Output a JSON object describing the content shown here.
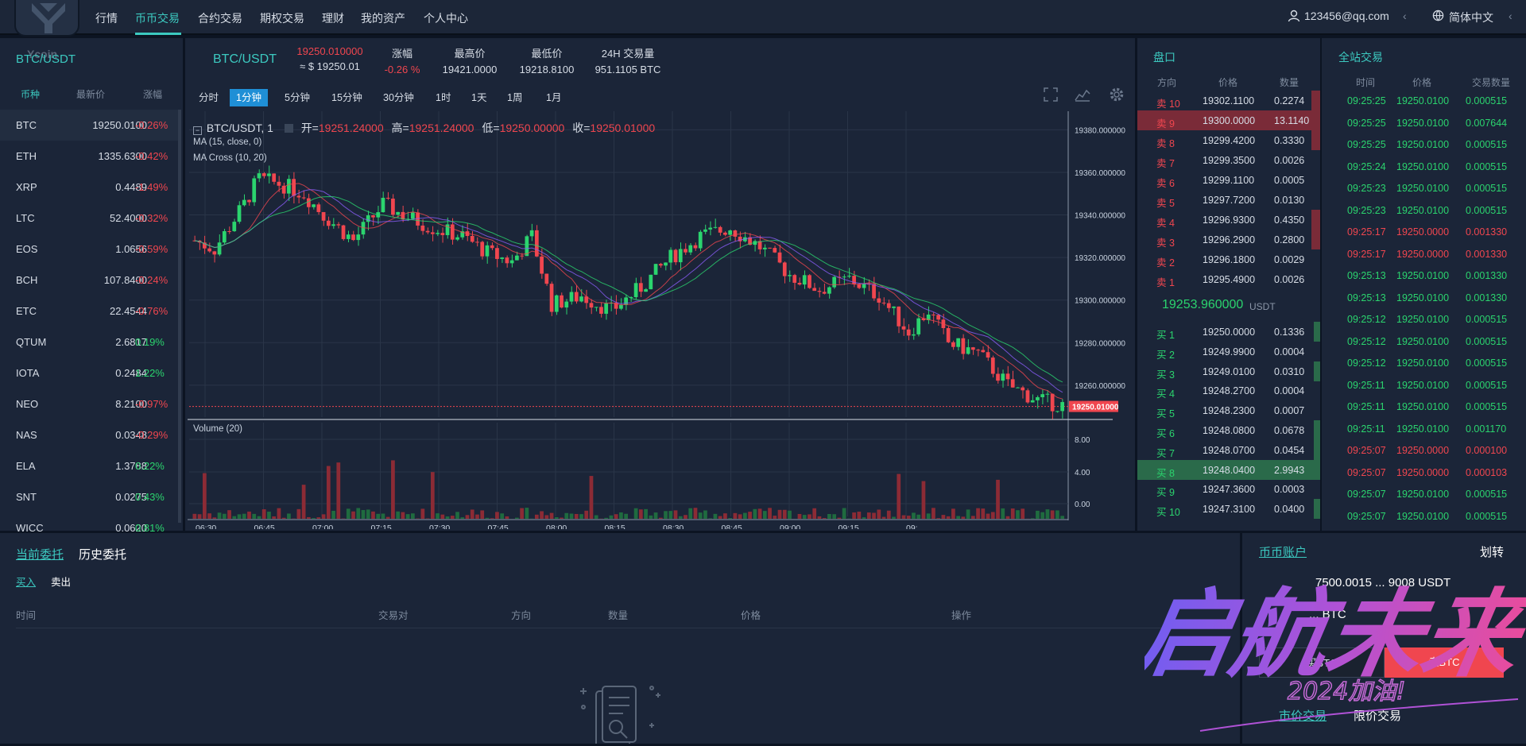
{
  "nav": {
    "items": [
      "行情",
      "币币交易",
      "合约交易",
      "期权交易",
      "理财",
      "我的资产",
      "个人中心"
    ],
    "active": 1,
    "user": "123456@qq.com",
    "lang": "简体中文",
    "logo_text": "Ycoin"
  },
  "market": {
    "pair_title": "BTC/USDT",
    "headers": [
      "币种",
      "最新价",
      "涨幅"
    ],
    "rows": [
      {
        "sym": "BTC",
        "price": "19250.0100",
        "chg": "-0.26%",
        "dir": "dn"
      },
      {
        "sym": "ETH",
        "price": "1335.6300",
        "chg": "-0.42%",
        "dir": "dn"
      },
      {
        "sym": "XRP",
        "price": "0.4489",
        "chg": "-1.49%",
        "dir": "dn"
      },
      {
        "sym": "LTC",
        "price": "52.4000",
        "chg": "-0.32%",
        "dir": "dn"
      },
      {
        "sym": "EOS",
        "price": "1.0656",
        "chg": "-0.59%",
        "dir": "dn"
      },
      {
        "sym": "BCH",
        "price": "107.8400",
        "chg": "-0.24%",
        "dir": "dn"
      },
      {
        "sym": "ETC",
        "price": "22.4544",
        "chg": "-0.76%",
        "dir": "dn"
      },
      {
        "sym": "QTUM",
        "price": "2.6817",
        "chg": "0.19%",
        "dir": "up"
      },
      {
        "sym": "IOTA",
        "price": "0.2484",
        "chg": "1.22%",
        "dir": "up"
      },
      {
        "sym": "NEO",
        "price": "8.2100",
        "chg": "-0.97%",
        "dir": "dn"
      },
      {
        "sym": "NAS",
        "price": "0.0348",
        "chg": "-0.29%",
        "dir": "dn"
      },
      {
        "sym": "ELA",
        "price": "1.3788",
        "chg": "0.22%",
        "dir": "up"
      },
      {
        "sym": "SNT",
        "price": "0.0275",
        "chg": "0.43%",
        "dir": "up"
      },
      {
        "sym": "WICC",
        "price": "0.0620",
        "chg": "0.81%",
        "dir": "up"
      }
    ]
  },
  "ticker": {
    "pair": "BTC/USDT",
    "last": "19250.010000",
    "last_usd": "≈ $ 19250.01",
    "chg_label": "涨幅",
    "chg": "-0.26 %",
    "high_label": "最高价",
    "high": "19421.0000",
    "low_label": "最低价",
    "low": "19218.8100",
    "vol_label": "24H 交易量",
    "vol": "951.1105 BTC"
  },
  "timeframes": [
    "分时",
    "1分钟",
    "5分钟",
    "15分钟",
    "30分钟",
    "1时",
    "1天",
    "1周",
    "1月"
  ],
  "tf_active": 1,
  "chart_legend": {
    "title": "BTC/USDT, 1",
    "open_l": "开=",
    "open": "19251.24000",
    "high_l": "高=",
    "high": "19251.24000",
    "low_l": "低=",
    "low": "19250.00000",
    "close_l": "收=",
    "close": "19250.01000",
    "ma": "MA (15, close, 0)",
    "macross": "MA Cross (10, 20)",
    "volume": "Volume (20)"
  },
  "chart_data": {
    "type": "candlestick",
    "price_ticks": [
      "19380.000000",
      "19360.000000",
      "19340.000000",
      "19320.000000",
      "19300.000000",
      "19280.000000",
      "19260.000000"
    ],
    "last_price_tag": "19250.01000",
    "vol_ticks": [
      "8.00",
      "4.00",
      "0.00"
    ],
    "time_ticks": [
      "06:30",
      "06:45",
      "07:00",
      "07:15",
      "07:30",
      "07:45",
      "08:00",
      "08:15",
      "08:30",
      "08:45",
      "09:00",
      "09:15",
      "09:"
    ],
    "ylim": [
      19245,
      19388
    ]
  },
  "orderbook": {
    "title": "盘口",
    "headers": [
      "方向",
      "价格",
      "数量"
    ],
    "asks": [
      {
        "dir": "卖 10",
        "price": "19302.1100",
        "qty": "0.2274",
        "depth": 0.05
      },
      {
        "dir": "卖 9",
        "price": "19300.0000",
        "qty": "13.1140",
        "depth": 1.0
      },
      {
        "dir": "卖 8",
        "price": "19299.4200",
        "qty": "0.3330",
        "depth": 0.05
      },
      {
        "dir": "卖 7",
        "price": "19299.3500",
        "qty": "0.0026",
        "depth": 0.0
      },
      {
        "dir": "卖 6",
        "price": "19299.1100",
        "qty": "0.0005",
        "depth": 0.0
      },
      {
        "dir": "卖 5",
        "price": "19297.7200",
        "qty": "0.0130",
        "depth": 0.0
      },
      {
        "dir": "卖 4",
        "price": "19296.9300",
        "qty": "0.4350",
        "depth": 0.05
      },
      {
        "dir": "卖 3",
        "price": "19296.2900",
        "qty": "0.2800",
        "depth": 0.05
      },
      {
        "dir": "卖 2",
        "price": "19296.1800",
        "qty": "0.0029",
        "depth": 0.0
      },
      {
        "dir": "卖 1",
        "price": "19295.4900",
        "qty": "0.0026",
        "depth": 0.0
      }
    ],
    "mid": "19253.960000",
    "mid_unit": "USDT",
    "bids": [
      {
        "dir": "买 1",
        "price": "19250.0000",
        "qty": "0.1336",
        "depth": 0.03
      },
      {
        "dir": "买 2",
        "price": "19249.9900",
        "qty": "0.0004",
        "depth": 0.0
      },
      {
        "dir": "买 3",
        "price": "19249.0100",
        "qty": "0.0310",
        "depth": 0.01
      },
      {
        "dir": "买 4",
        "price": "19248.2700",
        "qty": "0.0004",
        "depth": 0.0
      },
      {
        "dir": "买 5",
        "price": "19248.2300",
        "qty": "0.0007",
        "depth": 0.0
      },
      {
        "dir": "买 6",
        "price": "19248.0800",
        "qty": "0.0678",
        "depth": 0.01
      },
      {
        "dir": "买 7",
        "price": "19248.0700",
        "qty": "0.0454",
        "depth": 0.01
      },
      {
        "dir": "买 8",
        "price": "19248.0400",
        "qty": "2.9943",
        "depth": 1.0
      },
      {
        "dir": "买 9",
        "price": "19247.3600",
        "qty": "0.0003",
        "depth": 0.0
      },
      {
        "dir": "买 10",
        "price": "19247.3100",
        "qty": "0.0400",
        "depth": 0.01
      }
    ]
  },
  "trades": {
    "title": "全站交易",
    "headers": [
      "时间",
      "价格",
      "交易数量"
    ],
    "rows": [
      {
        "t": "09:25:25",
        "p": "19250.0100",
        "q": "0.000515",
        "d": "up"
      },
      {
        "t": "09:25:25",
        "p": "19250.0100",
        "q": "0.007644",
        "d": "up"
      },
      {
        "t": "09:25:25",
        "p": "19250.0100",
        "q": "0.000515",
        "d": "up"
      },
      {
        "t": "09:25:24",
        "p": "19250.0100",
        "q": "0.000515",
        "d": "up"
      },
      {
        "t": "09:25:23",
        "p": "19250.0100",
        "q": "0.000515",
        "d": "up"
      },
      {
        "t": "09:25:23",
        "p": "19250.0100",
        "q": "0.000515",
        "d": "up"
      },
      {
        "t": "09:25:17",
        "p": "19250.0000",
        "q": "0.001330",
        "d": "dn"
      },
      {
        "t": "09:25:17",
        "p": "19250.0000",
        "q": "0.001330",
        "d": "dn"
      },
      {
        "t": "09:25:13",
        "p": "19250.0100",
        "q": "0.001330",
        "d": "up"
      },
      {
        "t": "09:25:13",
        "p": "19250.0100",
        "q": "0.001330",
        "d": "up"
      },
      {
        "t": "09:25:12",
        "p": "19250.0100",
        "q": "0.000515",
        "d": "up"
      },
      {
        "t": "09:25:12",
        "p": "19250.0100",
        "q": "0.000515",
        "d": "up"
      },
      {
        "t": "09:25:12",
        "p": "19250.0100",
        "q": "0.000515",
        "d": "up"
      },
      {
        "t": "09:25:11",
        "p": "19250.0100",
        "q": "0.000515",
        "d": "up"
      },
      {
        "t": "09:25:11",
        "p": "19250.0100",
        "q": "0.000515",
        "d": "up"
      },
      {
        "t": "09:25:11",
        "p": "19250.0100",
        "q": "0.001170",
        "d": "up"
      },
      {
        "t": "09:25:07",
        "p": "19250.0000",
        "q": "0.000100",
        "d": "dn"
      },
      {
        "t": "09:25:07",
        "p": "19250.0000",
        "q": "0.000103",
        "d": "dn"
      },
      {
        "t": "09:25:07",
        "p": "19250.0100",
        "q": "0.000515",
        "d": "up"
      },
      {
        "t": "09:25:07",
        "p": "19250.0100",
        "q": "0.000515",
        "d": "up"
      }
    ]
  },
  "orders": {
    "tab_current": "当前委托",
    "tab_history": "历史委托",
    "sub_buy": "买入",
    "sub_sell": "卖出",
    "cols": [
      "时间",
      "交易对",
      "方向",
      "数量",
      "价格",
      "操作"
    ]
  },
  "account": {
    "title": "币币账户",
    "transfer": "划转",
    "balance": "7500.0015 ... 9008 USDT",
    "balance2": "... BTC",
    "buy_btn": "买BTC",
    "sell_btn": "卖BTC",
    "tab_market": "市价交易",
    "tab_limit": "限价交易"
  },
  "watermark": {
    "text": "启航未来",
    "sub": "2024加油!"
  },
  "colors": {
    "up": "#2bd46e",
    "down": "#f0464f",
    "accent": "#3cc9c0",
    "active_tf": "#1f8fd6"
  }
}
